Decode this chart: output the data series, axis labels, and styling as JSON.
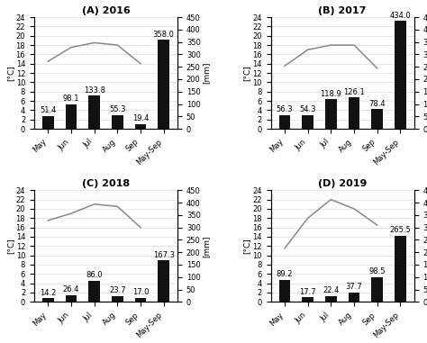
{
  "panels": [
    {
      "title": "(A) 2016",
      "rain": [
        51.4,
        98.1,
        133.8,
        55.3,
        19.4,
        358.0
      ],
      "temp": [
        14.5,
        17.5,
        18.5,
        18.0,
        14.0
      ]
    },
    {
      "title": "(B) 2017",
      "rain": [
        56.3,
        54.3,
        118.9,
        126.1,
        78.4,
        434.0
      ],
      "temp": [
        13.5,
        17.0,
        18.0,
        18.0,
        13.0
      ]
    },
    {
      "title": "(C) 2018",
      "rain": [
        14.2,
        26.4,
        86.0,
        23.7,
        17.0,
        167.3
      ],
      "temp": [
        17.5,
        19.0,
        21.0,
        20.5,
        16.0
      ]
    },
    {
      "title": "(D) 2019",
      "rain": [
        89.2,
        17.7,
        22.4,
        37.7,
        98.5,
        265.5
      ],
      "temp": [
        11.5,
        18.0,
        22.0,
        20.0,
        16.5
      ]
    }
  ],
  "categories": [
    "May",
    "Jun",
    "Jul",
    "Aug",
    "Sep",
    "May-Sep"
  ],
  "bar_color": "#111111",
  "line_color": "#888888",
  "temp_ylim": [
    0,
    24
  ],
  "temp_yticks": [
    0,
    2,
    4,
    6,
    8,
    10,
    12,
    14,
    16,
    18,
    20,
    22,
    24
  ],
  "rain_ylim": [
    0,
    450
  ],
  "rain_yticks": [
    0,
    50,
    100,
    150,
    200,
    250,
    300,
    350,
    400,
    450
  ],
  "ylabel_left": "[°C]",
  "ylabel_right": "[mm]",
  "bar_width": 0.5,
  "fontsize_title": 8,
  "fontsize_label": 6.5,
  "fontsize_tick": 6,
  "fontsize_annot": 6
}
